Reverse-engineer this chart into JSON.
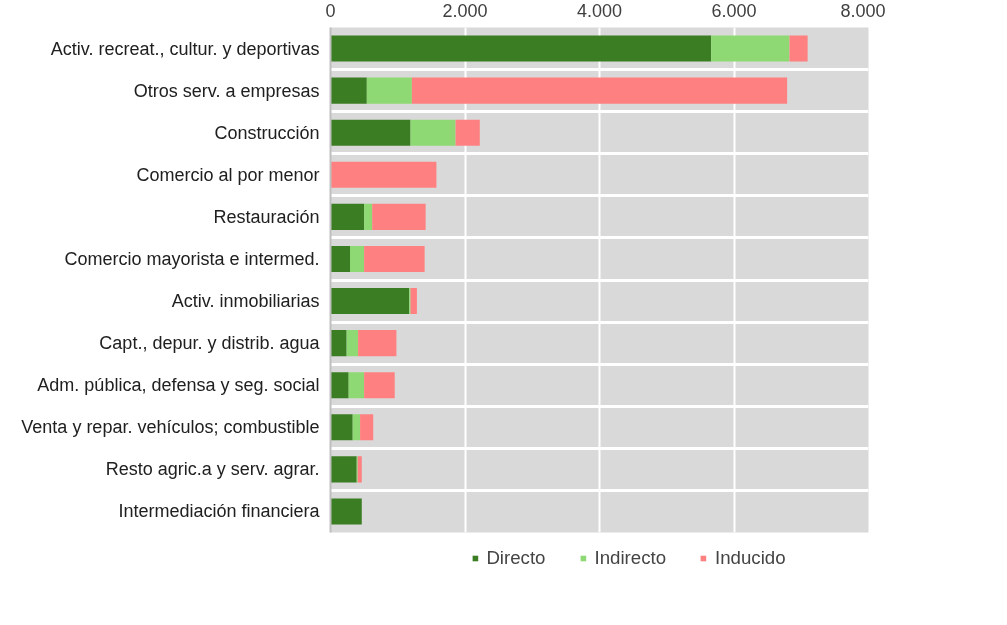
{
  "chart_data": {
    "type": "bar",
    "orientation": "horizontal",
    "stacked": true,
    "categories": [
      "Activ. recreat., cultur. y deportivas",
      "Otros serv. a empresas",
      "Construcción",
      "Comercio al por menor",
      "Restauración",
      "Comercio mayorista e intermed.",
      "Activ. inmobiliarias",
      "Capt., depur. y distrib. agua",
      "Adm. pública, defensa y seg. social",
      "Venta y repar. vehículos; combustible",
      "Resto agric.a y serv. agrar.",
      "Intermediación financiera"
    ],
    "series": [
      {
        "name": "Directo",
        "color": "#3b7d23",
        "values": [
          5660,
          540,
          1190,
          0,
          500,
          290,
          1170,
          240,
          270,
          330,
          390,
          465
        ]
      },
      {
        "name": "Indirecto",
        "color": "#8ed973",
        "values": [
          1165,
          670,
          670,
          0,
          120,
          210,
          20,
          170,
          230,
          110,
          15,
          0
        ]
      },
      {
        "name": "Inducido",
        "color": "#ff8080",
        "values": [
          270,
          5580,
          360,
          1575,
          795,
          900,
          95,
          570,
          455,
          195,
          60,
          0
        ]
      }
    ],
    "xlim": [
      0,
      8000
    ],
    "xticks": [
      0,
      {
        "value": 2000,
        "label": "2.000"
      },
      {
        "value": 4000,
        "label": "4.000"
      },
      {
        "value": 6000,
        "label": "6.000"
      },
      {
        "value": 8000,
        "label": "8.000"
      }
    ],
    "grid": true,
    "legend": "bottom"
  }
}
